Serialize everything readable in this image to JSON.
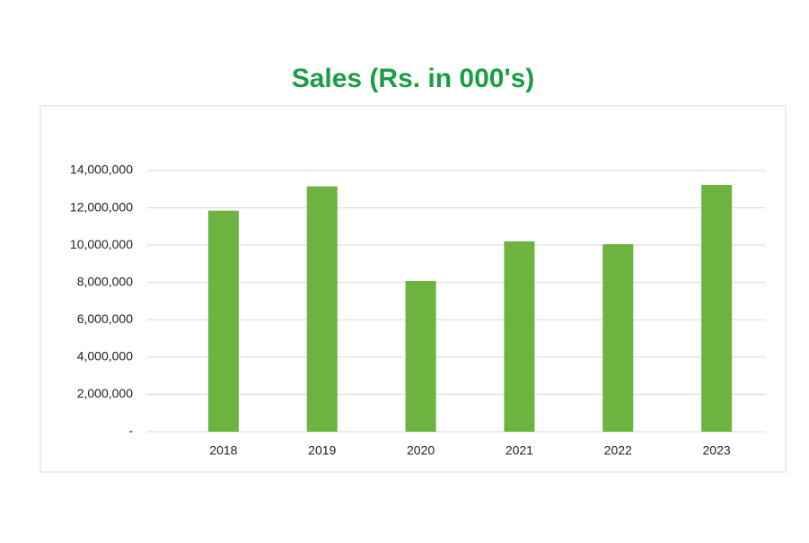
{
  "chart_data": {
    "type": "bar",
    "title": "Sales  (Rs. in 000's)",
    "categories": [
      "2018",
      "2019",
      "2020",
      "2021",
      "2022",
      "2023"
    ],
    "values": [
      11850000,
      13150000,
      8080000,
      10200000,
      10050000,
      13230000
    ],
    "color": "#6db33f",
    "ylim": [
      0,
      14000000
    ],
    "yticks": [
      {
        "value": 0,
        "label": "-"
      },
      {
        "value": 2000000,
        "label": "2,000,000"
      },
      {
        "value": 4000000,
        "label": "4,000,000"
      },
      {
        "value": 6000000,
        "label": "6,000,000"
      },
      {
        "value": 8000000,
        "label": "8,000,000"
      },
      {
        "value": 10000000,
        "label": "10,000,000"
      },
      {
        "value": 12000000,
        "label": "12,000,000"
      },
      {
        "value": 14000000,
        "label": "14,000,000"
      }
    ],
    "grid": true
  }
}
